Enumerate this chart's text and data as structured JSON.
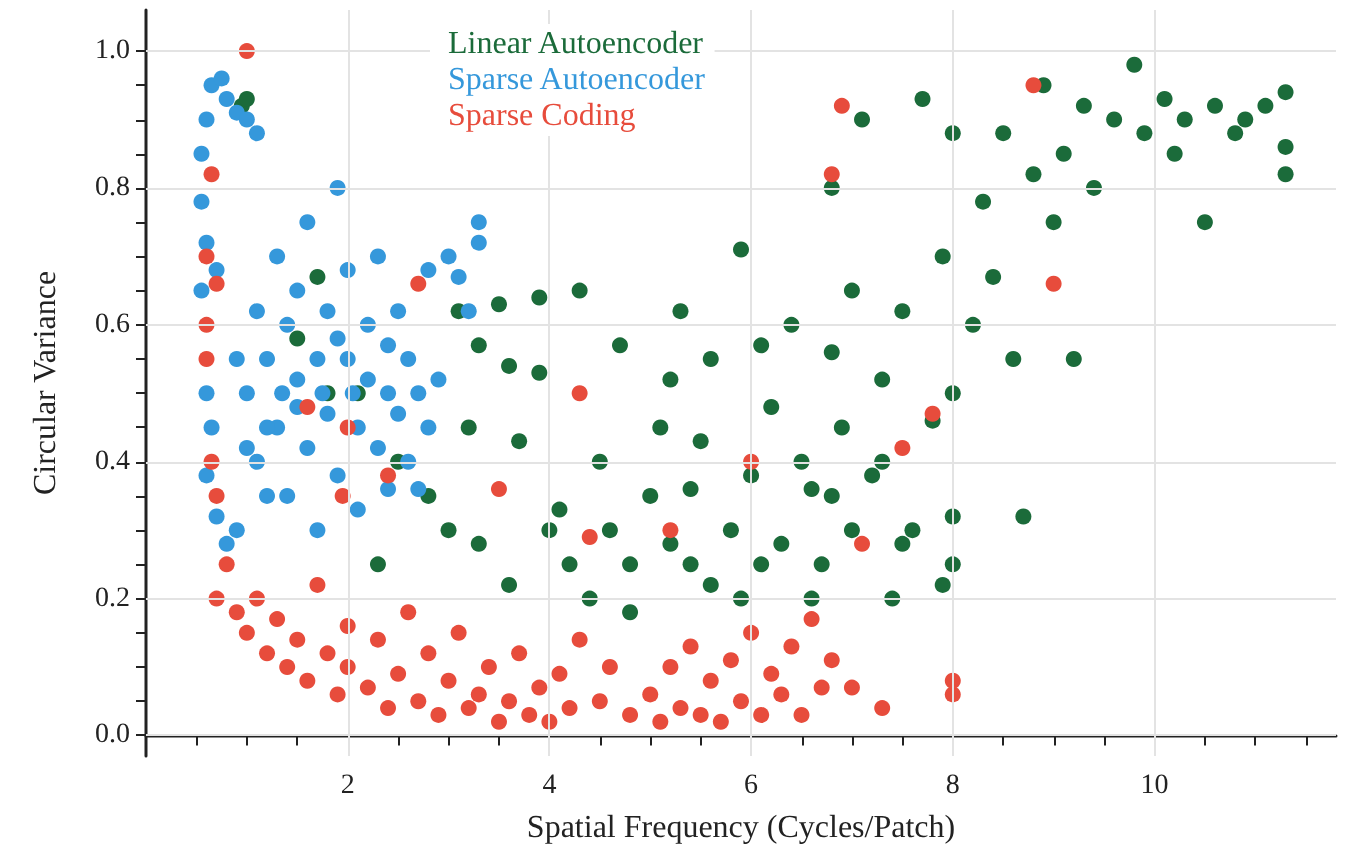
{
  "chart_data": {
    "type": "scatter",
    "xlabel": "Spatial Frequency (Cycles/Patch)",
    "ylabel": "Circular Variance",
    "xlim": [
      0,
      11.8
    ],
    "ylim": [
      -0.03,
      1.06
    ],
    "xticks": [
      {
        "value": 0.5,
        "label": null
      },
      {
        "value": 1,
        "label": null
      },
      {
        "value": 1.5,
        "label": null
      },
      2,
      {
        "value": 2.5,
        "label": null
      },
      {
        "value": 3,
        "label": null
      },
      {
        "value": 3.5,
        "label": null
      },
      4,
      {
        "value": 4.5,
        "label": null
      },
      {
        "value": 5,
        "label": null
      },
      {
        "value": 5.5,
        "label": null
      },
      6,
      {
        "value": 6.5,
        "label": null
      },
      {
        "value": 7,
        "label": null
      },
      {
        "value": 7.5,
        "label": null
      },
      8,
      {
        "value": 8.5,
        "label": null
      },
      {
        "value": 9,
        "label": null
      },
      {
        "value": 9.5,
        "label": null
      },
      10,
      {
        "value": 10.5,
        "label": null
      },
      {
        "value": 11,
        "label": null
      },
      {
        "value": 11.5,
        "label": null
      }
    ],
    "yticks": [
      {
        "value": 0,
        "label": "0.0"
      },
      {
        "value": 0.05,
        "label": null
      },
      {
        "value": 0.1,
        "label": null
      },
      {
        "value": 0.15,
        "label": null
      },
      0.2,
      {
        "value": 0.25,
        "label": null
      },
      {
        "value": 0.3,
        "label": null
      },
      {
        "value": 0.35,
        "label": null
      },
      0.4,
      {
        "value": 0.45,
        "label": null
      },
      {
        "value": 0.5,
        "label": null
      },
      {
        "value": 0.55,
        "label": null
      },
      0.6,
      {
        "value": 0.65,
        "label": null
      },
      {
        "value": 0.7,
        "label": null
      },
      {
        "value": 0.75,
        "label": null
      },
      0.8,
      {
        "value": 0.85,
        "label": null
      },
      {
        "value": 0.9,
        "label": null
      },
      {
        "value": 0.95,
        "label": null
      },
      {
        "value": 1,
        "label": "1.0"
      }
    ],
    "grid": true,
    "legend": "top",
    "marker": "circle",
    "series": [
      {
        "name": "Linear Autoencoder",
        "color": "#1b6b3a",
        "x": [
          0.95,
          1.0,
          1.5,
          1.8,
          2.5,
          2.8,
          3.0,
          3.1,
          3.2,
          3.3,
          3.5,
          3.6,
          3.7,
          3.9,
          3.9,
          4.0,
          4.3,
          4.2,
          4.5,
          4.7,
          4.8,
          5.0,
          5.1,
          5.2,
          5.3,
          5.4,
          5.5,
          5.6,
          5.8,
          5.9,
          5.9,
          6.0,
          6.1,
          6.2,
          6.3,
          6.4,
          6.5,
          6.6,
          6.7,
          6.8,
          6.8,
          6.9,
          7.0,
          7.1,
          7.2,
          7.3,
          7.4,
          7.5,
          7.6,
          7.7,
          7.8,
          7.9,
          8.0,
          8.0,
          8.0,
          8.2,
          8.3,
          8.4,
          8.5,
          8.6,
          8.7,
          8.8,
          8.9,
          9.0,
          9.1,
          9.2,
          9.3,
          9.4,
          9.6,
          9.8,
          9.9,
          10.1,
          10.2,
          10.3,
          10.5,
          10.6,
          10.8,
          10.9,
          11.1,
          11.3,
          11.3,
          11.3,
          3.3,
          3.6,
          4.1,
          4.4,
          4.6,
          5.2,
          5.6,
          6.1,
          6.6,
          7.0,
          7.5,
          7.9,
          8.0,
          5.4,
          6.8,
          7.3,
          4.8,
          2.3,
          2.1,
          1.7
        ],
        "values": [
          0.92,
          0.93,
          0.58,
          0.5,
          0.4,
          0.35,
          0.3,
          0.62,
          0.45,
          0.57,
          0.63,
          0.54,
          0.43,
          0.64,
          0.53,
          0.3,
          0.65,
          0.25,
          0.4,
          0.57,
          0.18,
          0.35,
          0.45,
          0.52,
          0.62,
          0.25,
          0.43,
          0.55,
          0.3,
          0.71,
          0.2,
          0.38,
          0.57,
          0.48,
          0.28,
          0.6,
          0.4,
          0.36,
          0.25,
          0.8,
          0.56,
          0.45,
          0.65,
          0.9,
          0.38,
          0.52,
          0.2,
          0.62,
          0.3,
          0.93,
          0.46,
          0.7,
          0.25,
          0.88,
          0.5,
          0.6,
          0.78,
          0.67,
          0.88,
          0.55,
          0.32,
          0.82,
          0.95,
          0.75,
          0.85,
          0.55,
          0.92,
          0.8,
          0.9,
          0.98,
          0.88,
          0.93,
          0.85,
          0.9,
          0.75,
          0.92,
          0.88,
          0.9,
          0.92,
          0.94,
          0.82,
          0.86,
          0.28,
          0.22,
          0.33,
          0.2,
          0.3,
          0.28,
          0.22,
          0.25,
          0.2,
          0.3,
          0.28,
          0.22,
          0.32,
          0.36,
          0.35,
          0.4,
          0.25,
          0.25,
          0.5,
          0.67
        ]
      },
      {
        "name": "Sparse Autoencoder",
        "color": "#3598db",
        "x": [
          0.55,
          0.6,
          0.65,
          0.75,
          0.8,
          0.9,
          1.0,
          1.1,
          0.55,
          0.6,
          0.55,
          0.7,
          0.6,
          0.65,
          0.6,
          0.7,
          0.8,
          0.9,
          1.0,
          1.1,
          1.1,
          1.2,
          1.3,
          1.3,
          1.4,
          1.4,
          1.5,
          1.5,
          1.6,
          1.6,
          1.7,
          1.7,
          1.8,
          1.8,
          1.9,
          1.9,
          2.0,
          2.0,
          2.1,
          2.1,
          2.2,
          2.2,
          2.3,
          2.3,
          2.4,
          2.4,
          2.5,
          2.5,
          2.6,
          2.6,
          2.7,
          2.8,
          2.8,
          2.9,
          3.0,
          3.1,
          3.3,
          3.3,
          3.2,
          2.7,
          1.2,
          1.0,
          1.5,
          1.9,
          1.75,
          2.05,
          1.35,
          0.9,
          1.2,
          2.4
        ],
        "values": [
          0.85,
          0.9,
          0.95,
          0.96,
          0.93,
          0.91,
          0.9,
          0.88,
          0.78,
          0.72,
          0.65,
          0.68,
          0.5,
          0.45,
          0.38,
          0.32,
          0.28,
          0.3,
          0.5,
          0.62,
          0.4,
          0.55,
          0.7,
          0.45,
          0.35,
          0.6,
          0.52,
          0.65,
          0.75,
          0.42,
          0.55,
          0.3,
          0.62,
          0.47,
          0.8,
          0.38,
          0.55,
          0.68,
          0.45,
          0.33,
          0.6,
          0.52,
          0.7,
          0.42,
          0.5,
          0.36,
          0.62,
          0.47,
          0.55,
          0.4,
          0.5,
          0.45,
          0.68,
          0.52,
          0.7,
          0.67,
          0.75,
          0.72,
          0.62,
          0.36,
          0.35,
          0.42,
          0.48,
          0.58,
          0.5,
          0.5,
          0.5,
          0.55,
          0.45,
          0.57
        ]
      },
      {
        "name": "Sparse Coding",
        "color": "#e74c3c",
        "x": [
          1.0,
          0.65,
          0.6,
          0.7,
          0.6,
          0.6,
          2.7,
          1.6,
          2.0,
          6.9,
          6.8,
          8.8,
          9.0,
          7.8,
          7.5,
          4.3,
          3.5,
          6.0,
          4.4,
          5.2,
          7.1,
          0.65,
          0.7,
          0.8,
          0.7,
          2.0,
          2.4,
          1.95,
          0.9,
          1.0,
          1.1,
          1.2,
          1.3,
          1.4,
          1.5,
          1.6,
          1.7,
          1.8,
          1.9,
          2.0,
          2.2,
          2.3,
          2.4,
          2.5,
          2.6,
          2.7,
          2.8,
          2.9,
          3.0,
          3.1,
          3.2,
          3.3,
          3.4,
          3.5,
          3.6,
          3.7,
          3.8,
          3.9,
          4.0,
          4.1,
          4.2,
          4.3,
          4.5,
          4.6,
          4.8,
          5.0,
          5.1,
          5.2,
          5.3,
          5.4,
          5.5,
          5.6,
          5.7,
          5.8,
          5.9,
          6.0,
          6.1,
          6.2,
          6.3,
          6.4,
          6.5,
          6.6,
          6.7,
          6.8,
          7.0,
          7.3,
          8.0,
          8.0
        ],
        "values": [
          1.0,
          0.82,
          0.7,
          0.66,
          0.6,
          0.55,
          0.66,
          0.48,
          0.45,
          0.92,
          0.82,
          0.95,
          0.66,
          0.47,
          0.42,
          0.5,
          0.36,
          0.4,
          0.29,
          0.3,
          0.28,
          0.4,
          0.35,
          0.25,
          0.2,
          0.16,
          0.38,
          0.35,
          0.18,
          0.15,
          0.2,
          0.12,
          0.17,
          0.1,
          0.14,
          0.08,
          0.22,
          0.12,
          0.06,
          0.1,
          0.07,
          0.14,
          0.04,
          0.09,
          0.18,
          0.05,
          0.12,
          0.03,
          0.08,
          0.15,
          0.04,
          0.06,
          0.1,
          0.02,
          0.05,
          0.12,
          0.03,
          0.07,
          0.02,
          0.09,
          0.04,
          0.14,
          0.05,
          0.1,
          0.03,
          0.06,
          0.02,
          0.1,
          0.04,
          0.13,
          0.03,
          0.08,
          0.02,
          0.11,
          0.05,
          0.15,
          0.03,
          0.09,
          0.06,
          0.13,
          0.03,
          0.17,
          0.07,
          0.11,
          0.07,
          0.04,
          0.06,
          0.08
        ]
      }
    ]
  }
}
